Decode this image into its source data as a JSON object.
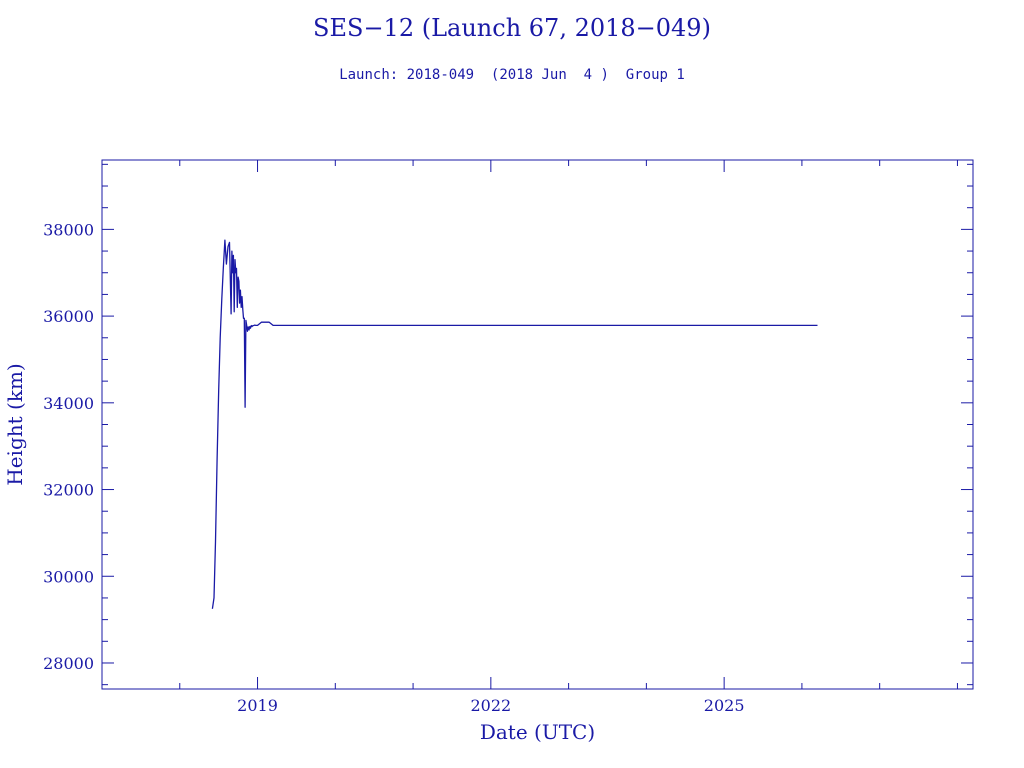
{
  "colors": {
    "ink": "#1a1aa6",
    "background": "#ffffff"
  },
  "header": {
    "title": "SES−12 (Launch 67, 2018−049)",
    "subtitle": "Launch: 2018-049  (2018 Jun  4 )  Group 1"
  },
  "chart_data": {
    "type": "line",
    "title": "SES−12 (Launch 67, 2018−049)",
    "subtitle": "Launch: 2018-049  (2018 Jun  4 )  Group 1",
    "xlabel": "Date (UTC)",
    "ylabel": "Height (km)",
    "xlim": [
      2017.0,
      2028.2
    ],
    "ylim": [
      27400,
      39600
    ],
    "x_ticks": [
      2019,
      2022,
      2025
    ],
    "y_ticks": [
      28000,
      30000,
      32000,
      34000,
      36000,
      38000
    ],
    "legend": "none",
    "grid": false,
    "series": [
      {
        "name": "",
        "x": [
          2018.42,
          2018.44,
          2018.46,
          2018.48,
          2018.5,
          2018.52,
          2018.54,
          2018.56,
          2018.58,
          2018.6,
          2018.62,
          2018.64,
          2018.66,
          2018.67,
          2018.68,
          2018.69,
          2018.7,
          2018.71,
          2018.72,
          2018.73,
          2018.74,
          2018.75,
          2018.76,
          2018.77,
          2018.78,
          2018.79,
          2018.8,
          2018.81,
          2018.82,
          2018.83,
          2018.84,
          2018.85,
          2018.86,
          2018.87,
          2018.88,
          2018.89,
          2018.9,
          2018.91,
          2018.92,
          2018.93,
          2018.94,
          2018.95,
          2018.96,
          2018.97,
          2018.98,
          2018.99,
          2019.0,
          2019.05,
          2019.1,
          2019.15,
          2019.2,
          2020.5,
          2022.0,
          2024.0,
          2025.5,
          2026.2
        ],
        "y": [
          29250,
          29500,
          30800,
          32700,
          34300,
          35500,
          36400,
          37100,
          37750,
          37200,
          37600,
          37700,
          36050,
          37500,
          37000,
          37400,
          36100,
          37300,
          37000,
          37100,
          36200,
          36900,
          36800,
          36300,
          36600,
          36200,
          36450,
          36150,
          35950,
          35950,
          33900,
          35900,
          35800,
          35650,
          35750,
          35680,
          35760,
          35720,
          35780,
          35760,
          35780,
          35780,
          35790,
          35790,
          35786,
          35786,
          35786,
          35860,
          35860,
          35860,
          35786,
          35786,
          35786,
          35786,
          35786,
          35786
        ]
      }
    ]
  }
}
